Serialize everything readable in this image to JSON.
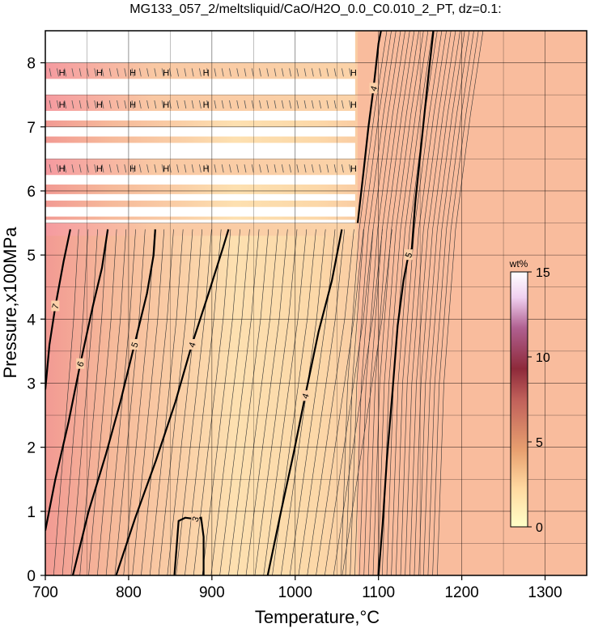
{
  "chart_data": {
    "type": "heatmap",
    "title": "MG133_057_2/meltsliquid/CaO/H2O_0.0_C0.010_2_PT, dz=0.1:",
    "xlabel": "Temperature,°C",
    "ylabel": "Pressure,x100MPa",
    "xlim": [
      700,
      1350
    ],
    "ylim": [
      0,
      8.5
    ],
    "xticks": [
      700,
      800,
      900,
      1000,
      1100,
      1200,
      1300
    ],
    "yticks": [
      0,
      1,
      2,
      3,
      4,
      5,
      6,
      7,
      8
    ],
    "grid": true,
    "colorbar": {
      "unit": "wt%",
      "range": [
        0,
        15
      ],
      "ticks": [
        0,
        5,
        10,
        15
      ],
      "placement": "right-inside",
      "colors": [
        "#ffffc8",
        "#ffd9a0",
        "#e8a070",
        "#c0605a",
        "#8e2a3a",
        "#b06090",
        "#f0d0f0",
        "#ffffff"
      ]
    },
    "regions": [
      {
        "name": "upper-right high-T field",
        "value": 4.5,
        "color": "#f9bc9d"
      },
      {
        "name": "mid-T field",
        "value": 4.0,
        "color": "#fbd0a8"
      },
      {
        "name": "low-T field",
        "value": 5.5,
        "color": "#f4a78f"
      }
    ],
    "series": [
      {
        "label": "7",
        "level": 7,
        "points": [
          [
            700,
            2.9
          ],
          [
            705,
            3.6
          ],
          [
            712,
            4.2
          ],
          [
            722,
            4.9
          ],
          [
            730,
            5.4
          ]
        ],
        "major": true
      },
      {
        "label": "6",
        "level": 6,
        "points": [
          [
            700,
            0.7
          ],
          [
            712,
            1.5
          ],
          [
            728,
            2.4
          ],
          [
            742,
            3.3
          ],
          [
            757,
            4.2
          ],
          [
            768,
            4.8
          ],
          [
            775,
            5.4
          ]
        ],
        "major": true
      },
      {
        "label": "5",
        "level": 5,
        "points": [
          [
            733,
            0
          ],
          [
            752,
            1
          ],
          [
            773,
            1.9
          ],
          [
            790,
            2.7
          ],
          [
            807,
            3.6
          ],
          [
            822,
            4.4
          ],
          [
            830,
            5.0
          ],
          [
            832,
            5.4
          ]
        ],
        "major": true
      },
      {
        "label": "4",
        "level": 4,
        "points": [
          [
            785,
            0
          ],
          [
            808,
            0.9
          ],
          [
            833,
            1.8
          ],
          [
            856,
            2.7
          ],
          [
            876,
            3.6
          ],
          [
            896,
            4.4
          ],
          [
            913,
            5.1
          ],
          [
            920,
            5.4
          ]
        ],
        "major": true
      },
      {
        "label": "3",
        "level": 3,
        "points": [
          [
            855,
            0
          ],
          [
            858,
            0.5
          ],
          [
            860,
            0.85
          ],
          [
            868,
            0.9
          ],
          [
            880,
            0.88
          ],
          [
            887,
            0.9
          ],
          [
            890,
            0.6
          ],
          [
            890,
            0
          ]
        ],
        "major": true
      },
      {
        "label": "4",
        "level": 4,
        "points": [
          [
            967,
            0
          ],
          [
            983,
            1
          ],
          [
            998,
            1.9
          ],
          [
            1012,
            2.8
          ],
          [
            1028,
            3.8
          ],
          [
            1044,
            4.6
          ],
          [
            1056,
            5.4
          ]
        ],
        "major": true
      },
      {
        "label": "4",
        "level": 4,
        "points": [
          [
            1075,
            5.5
          ],
          [
            1082,
            6.3
          ],
          [
            1088,
            7.0
          ],
          [
            1094,
            7.6
          ],
          [
            1100,
            8.3
          ],
          [
            1103,
            8.5
          ]
        ],
        "major": true
      },
      {
        "label": "5",
        "level": 5,
        "points": [
          [
            1100,
            0
          ],
          [
            1105,
            0.8
          ],
          [
            1110,
            1.8
          ],
          [
            1117,
            2.9
          ],
          [
            1123,
            3.9
          ],
          [
            1130,
            4.6
          ],
          [
            1136,
            5.0
          ],
          [
            1140,
            5.1
          ],
          [
            1144,
            5.8
          ],
          [
            1152,
            6.8
          ],
          [
            1160,
            7.8
          ],
          [
            1166,
            8.5
          ]
        ],
        "major": true
      }
    ],
    "hatched_rows": [
      {
        "p": 7.85,
        "labels": [
          "H",
          "H",
          "H",
          "H",
          "H",
          "H"
        ]
      },
      {
        "p": 7.35,
        "labels": [
          "H",
          "H",
          "H",
          "H",
          "H",
          "H"
        ]
      },
      {
        "p": 6.35,
        "labels": [
          "H",
          "H",
          "H",
          "H",
          "H",
          "H",
          "H"
        ]
      }
    ],
    "blank_bands": [
      [
        8.0,
        8.5
      ],
      [
        7.5,
        7.75
      ],
      [
        7.1,
        7.25
      ],
      [
        6.85,
        7.0
      ],
      [
        6.5,
        6.75
      ],
      [
        6.1,
        6.25
      ],
      [
        5.85,
        5.95
      ],
      [
        5.6,
        5.75
      ],
      [
        5.5,
        5.55
      ]
    ]
  }
}
